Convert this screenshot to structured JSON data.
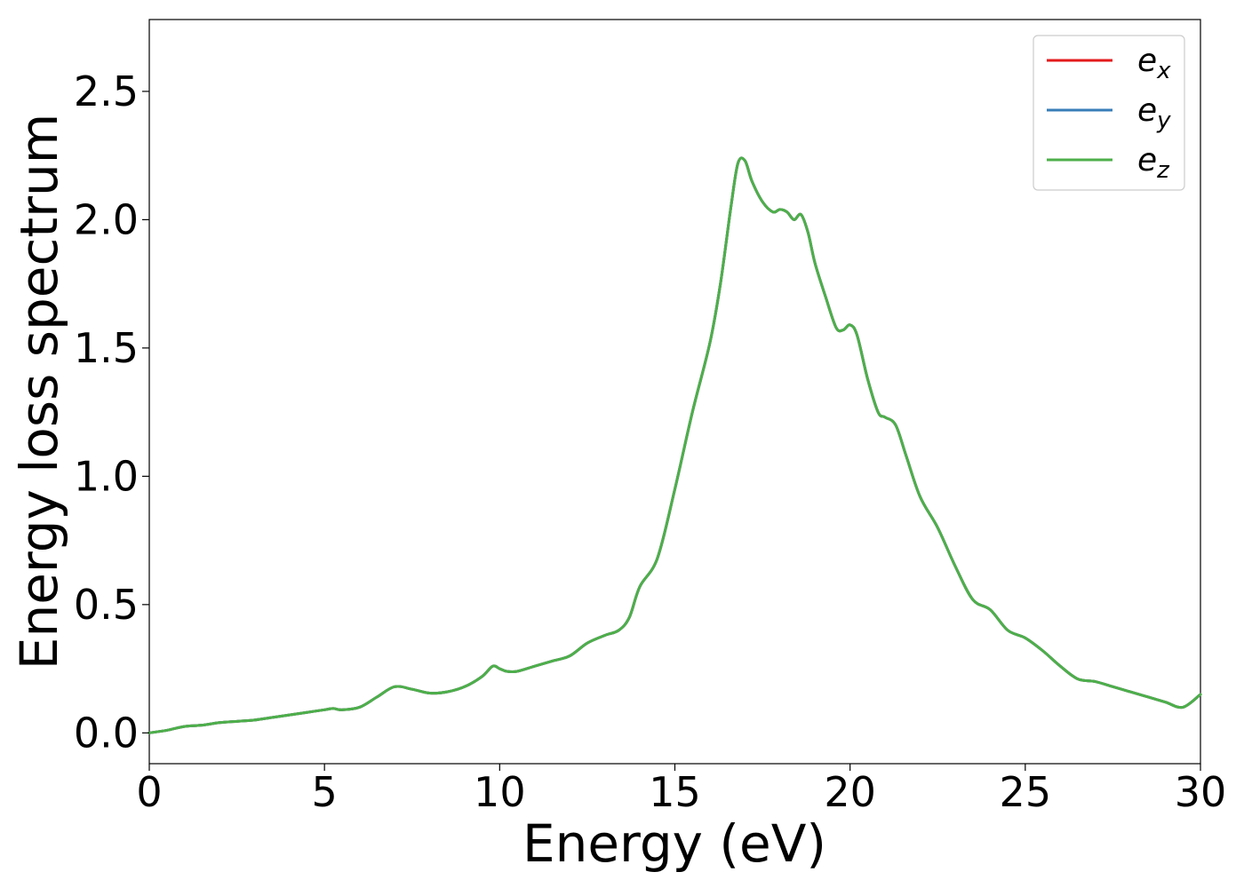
{
  "chart_data": {
    "type": "line",
    "xlabel": "Energy (eV)",
    "ylabel": "Energy loss spectrum",
    "xlim": [
      0,
      30
    ],
    "ylim": [
      -0.12,
      2.78
    ],
    "xticks": [
      0,
      5,
      10,
      15,
      20,
      25,
      30
    ],
    "xtick_labels": [
      "0",
      "5",
      "10",
      "15",
      "20",
      "25",
      "30"
    ],
    "yticks": [
      0.0,
      0.5,
      1.0,
      1.5,
      2.0,
      2.5
    ],
    "ytick_labels": [
      "0.0",
      "0.5",
      "1.0",
      "1.5",
      "2.0",
      "2.5"
    ],
    "grid": false,
    "legend_position": "top-right",
    "x": [
      0,
      0.5,
      1,
      1.5,
      2,
      2.5,
      3,
      3.5,
      4,
      4.5,
      5,
      5.25,
      5.5,
      6,
      6.5,
      7,
      7.5,
      8,
      8.5,
      9,
      9.5,
      9.8,
      10,
      10.2,
      10.5,
      11,
      11.5,
      12,
      12.5,
      13,
      13.4,
      13.7,
      14,
      14.5,
      15,
      15.5,
      16,
      16.3,
      16.6,
      16.8,
      17,
      17.2,
      17.5,
      17.8,
      18,
      18.2,
      18.4,
      18.6,
      18.8,
      19,
      19.3,
      19.6,
      19.8,
      20,
      20.2,
      20.5,
      20.8,
      21,
      21.3,
      21.6,
      22,
      22.5,
      23,
      23.5,
      24,
      24.5,
      25,
      25.5,
      26,
      26.5,
      27,
      27.5,
      28,
      28.5,
      29,
      29.5,
      30
    ],
    "series": [
      {
        "name": "e_x",
        "label_main": "e",
        "label_sub": "x",
        "color": "#e41a1c",
        "values": [
          0.0,
          0.01,
          0.025,
          0.03,
          0.04,
          0.045,
          0.05,
          0.06,
          0.07,
          0.08,
          0.09,
          0.095,
          0.09,
          0.1,
          0.14,
          0.18,
          0.17,
          0.155,
          0.16,
          0.18,
          0.22,
          0.26,
          0.25,
          0.24,
          0.24,
          0.26,
          0.28,
          0.3,
          0.35,
          0.38,
          0.4,
          0.45,
          0.57,
          0.68,
          0.95,
          1.25,
          1.52,
          1.75,
          2.05,
          2.22,
          2.23,
          2.15,
          2.07,
          2.03,
          2.04,
          2.03,
          2.0,
          2.02,
          1.95,
          1.83,
          1.7,
          1.58,
          1.57,
          1.59,
          1.55,
          1.38,
          1.25,
          1.23,
          1.2,
          1.08,
          0.92,
          0.8,
          0.65,
          0.52,
          0.48,
          0.4,
          0.37,
          0.32,
          0.26,
          0.21,
          0.2,
          0.18,
          0.16,
          0.14,
          0.12,
          0.1,
          0.15
        ]
      },
      {
        "name": "e_y",
        "label_main": "e",
        "label_sub": "y",
        "color": "#377eb8",
        "values": [
          0.0,
          0.01,
          0.025,
          0.03,
          0.04,
          0.045,
          0.05,
          0.06,
          0.07,
          0.08,
          0.09,
          0.095,
          0.09,
          0.1,
          0.14,
          0.18,
          0.17,
          0.155,
          0.16,
          0.18,
          0.22,
          0.26,
          0.25,
          0.24,
          0.24,
          0.26,
          0.28,
          0.3,
          0.35,
          0.38,
          0.4,
          0.45,
          0.57,
          0.68,
          0.95,
          1.25,
          1.52,
          1.75,
          2.05,
          2.22,
          2.23,
          2.15,
          2.07,
          2.03,
          2.04,
          2.03,
          2.0,
          2.02,
          1.95,
          1.83,
          1.7,
          1.58,
          1.57,
          1.59,
          1.55,
          1.38,
          1.25,
          1.23,
          1.2,
          1.08,
          0.92,
          0.8,
          0.65,
          0.52,
          0.48,
          0.4,
          0.37,
          0.32,
          0.26,
          0.21,
          0.2,
          0.18,
          0.16,
          0.14,
          0.12,
          0.1,
          0.15
        ]
      },
      {
        "name": "e_z",
        "label_main": "e",
        "label_sub": "z",
        "color": "#4daf4a",
        "values": [
          0.0,
          0.01,
          0.025,
          0.03,
          0.04,
          0.045,
          0.05,
          0.06,
          0.07,
          0.08,
          0.09,
          0.095,
          0.09,
          0.1,
          0.14,
          0.18,
          0.17,
          0.155,
          0.16,
          0.18,
          0.22,
          0.26,
          0.25,
          0.24,
          0.24,
          0.26,
          0.28,
          0.3,
          0.35,
          0.38,
          0.4,
          0.45,
          0.57,
          0.68,
          0.95,
          1.25,
          1.52,
          1.75,
          2.05,
          2.22,
          2.23,
          2.15,
          2.07,
          2.03,
          2.04,
          2.03,
          2.0,
          2.02,
          1.95,
          1.83,
          1.7,
          1.58,
          1.57,
          1.59,
          1.55,
          1.38,
          1.25,
          1.23,
          1.2,
          1.08,
          0.92,
          0.8,
          0.65,
          0.52,
          0.48,
          0.4,
          0.37,
          0.32,
          0.26,
          0.21,
          0.2,
          0.18,
          0.16,
          0.14,
          0.12,
          0.1,
          0.15
        ]
      }
    ]
  }
}
